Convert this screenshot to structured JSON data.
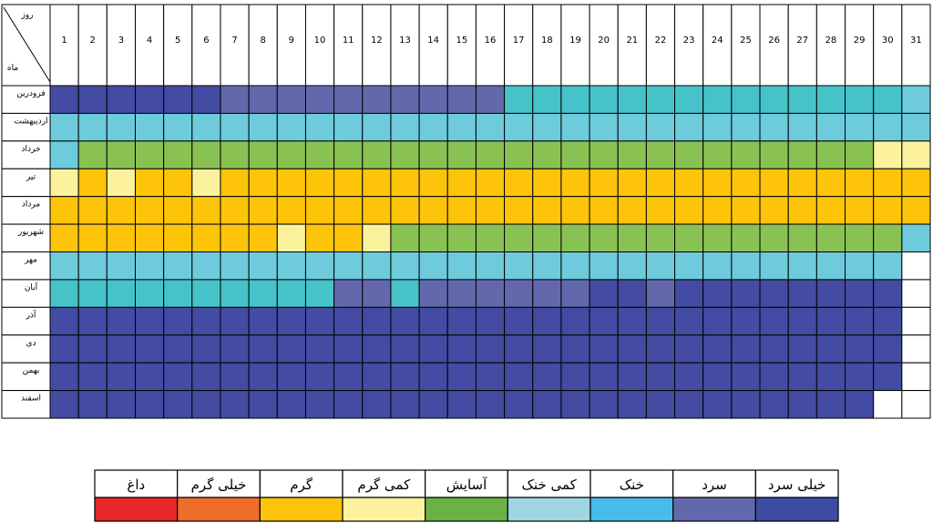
{
  "chart_data": {
    "type": "heatmap",
    "corner": {
      "top_label": "روز",
      "bottom_label": "ماه"
    },
    "days": [
      "1",
      "2",
      "3",
      "4",
      "5",
      "6",
      "7",
      "8",
      "9",
      "10",
      "11",
      "12",
      "13",
      "14",
      "15",
      "16",
      "17",
      "18",
      "19",
      "20",
      "21",
      "22",
      "23",
      "24",
      "25",
      "26",
      "27",
      "28",
      "29",
      "30",
      "31"
    ],
    "months": [
      "فرودرین",
      "اردیبهشت",
      "خرداد",
      "تیر",
      "مرداد",
      "شهریور",
      "مهر",
      "آبان",
      "آذر",
      "دی",
      "بهمن",
      "اسفند"
    ],
    "category_codes": {
      "D": "داغ",
      "VH": "خیلی گرم",
      "H": "گرم",
      "SH": "کمی گرم",
      "C": "آسایش",
      "SC": "کمی خنک",
      "K": "خنک",
      "S": "سرد",
      "VS": "خیلی سرد",
      "N": ""
    },
    "cell_colors": {
      "D": "#e8272a",
      "VH": "#ef6d2a",
      "H": "#fec409",
      "SH": "#fcf29e",
      "C": "#8ac153",
      "SC": "#6dcbdc",
      "TQ": "#45c3c8",
      "S": "#6368ad",
      "VS": "#434ba2",
      "N": "#ffffff"
    },
    "grid": [
      [
        "VS",
        "VS",
        "VS",
        "VS",
        "VS",
        "VS",
        "S",
        "S",
        "S",
        "S",
        "S",
        "S",
        "S",
        "S",
        "S",
        "S",
        "TQ",
        "TQ",
        "TQ",
        "TQ",
        "TQ",
        "TQ",
        "TQ",
        "TQ",
        "TQ",
        "TQ",
        "TQ",
        "TQ",
        "TQ",
        "TQ",
        "SC"
      ],
      [
        "SC",
        "SC",
        "SC",
        "SC",
        "SC",
        "SC",
        "SC",
        "SC",
        "SC",
        "SC",
        "SC",
        "SC",
        "SC",
        "SC",
        "SC",
        "SC",
        "SC",
        "SC",
        "SC",
        "SC",
        "SC",
        "SC",
        "SC",
        "SC",
        "SC",
        "SC",
        "SC",
        "SC",
        "SC",
        "SC",
        "SC"
      ],
      [
        "SC",
        "C",
        "C",
        "C",
        "C",
        "C",
        "C",
        "C",
        "C",
        "C",
        "C",
        "C",
        "C",
        "C",
        "C",
        "C",
        "C",
        "C",
        "C",
        "C",
        "C",
        "C",
        "C",
        "C",
        "C",
        "C",
        "C",
        "C",
        "C",
        "SH",
        "SH"
      ],
      [
        "SH",
        "H",
        "SH",
        "H",
        "H",
        "SH",
        "H",
        "H",
        "H",
        "H",
        "H",
        "H",
        "H",
        "H",
        "H",
        "H",
        "H",
        "H",
        "H",
        "H",
        "H",
        "H",
        "H",
        "H",
        "H",
        "H",
        "H",
        "H",
        "H",
        "H",
        "H"
      ],
      [
        "H",
        "H",
        "H",
        "H",
        "H",
        "H",
        "H",
        "H",
        "H",
        "H",
        "H",
        "H",
        "H",
        "H",
        "H",
        "H",
        "H",
        "H",
        "H",
        "H",
        "H",
        "H",
        "H",
        "H",
        "H",
        "H",
        "H",
        "H",
        "H",
        "H",
        "H"
      ],
      [
        "H",
        "H",
        "H",
        "H",
        "H",
        "H",
        "H",
        "H",
        "SH",
        "H",
        "H",
        "SH",
        "C",
        "C",
        "C",
        "C",
        "C",
        "C",
        "C",
        "C",
        "C",
        "C",
        "C",
        "C",
        "C",
        "C",
        "C",
        "C",
        "C",
        "C",
        "SC"
      ],
      [
        "SC",
        "SC",
        "SC",
        "SC",
        "SC",
        "SC",
        "SC",
        "SC",
        "SC",
        "SC",
        "SC",
        "SC",
        "SC",
        "SC",
        "SC",
        "SC",
        "SC",
        "SC",
        "SC",
        "SC",
        "SC",
        "SC",
        "SC",
        "SC",
        "SC",
        "SC",
        "SC",
        "SC",
        "SC",
        "SC",
        "N"
      ],
      [
        "TQ",
        "TQ",
        "TQ",
        "TQ",
        "TQ",
        "TQ",
        "TQ",
        "TQ",
        "TQ",
        "TQ",
        "S",
        "S",
        "TQ",
        "S",
        "S",
        "S",
        "S",
        "S",
        "S",
        "VS",
        "VS",
        "S",
        "VS",
        "VS",
        "VS",
        "VS",
        "VS",
        "VS",
        "VS",
        "VS",
        "N"
      ],
      [
        "VS",
        "VS",
        "VS",
        "VS",
        "VS",
        "VS",
        "VS",
        "VS",
        "VS",
        "VS",
        "VS",
        "VS",
        "VS",
        "VS",
        "VS",
        "VS",
        "VS",
        "VS",
        "VS",
        "VS",
        "VS",
        "VS",
        "VS",
        "VS",
        "VS",
        "VS",
        "VS",
        "VS",
        "VS",
        "VS",
        "N"
      ],
      [
        "VS",
        "VS",
        "VS",
        "VS",
        "VS",
        "VS",
        "VS",
        "VS",
        "VS",
        "VS",
        "VS",
        "VS",
        "VS",
        "VS",
        "VS",
        "VS",
        "VS",
        "VS",
        "VS",
        "VS",
        "VS",
        "VS",
        "VS",
        "VS",
        "VS",
        "VS",
        "VS",
        "VS",
        "VS",
        "VS",
        "N"
      ],
      [
        "VS",
        "VS",
        "VS",
        "VS",
        "VS",
        "VS",
        "VS",
        "VS",
        "VS",
        "VS",
        "VS",
        "VS",
        "VS",
        "VS",
        "VS",
        "VS",
        "VS",
        "VS",
        "VS",
        "VS",
        "VS",
        "VS",
        "VS",
        "VS",
        "VS",
        "VS",
        "VS",
        "VS",
        "VS",
        "VS",
        "N"
      ],
      [
        "VS",
        "VS",
        "VS",
        "VS",
        "VS",
        "VS",
        "VS",
        "VS",
        "VS",
        "VS",
        "VS",
        "VS",
        "VS",
        "VS",
        "VS",
        "VS",
        "VS",
        "VS",
        "VS",
        "VS",
        "VS",
        "VS",
        "VS",
        "VS",
        "VS",
        "VS",
        "VS",
        "VS",
        "VS",
        "N",
        "N"
      ]
    ],
    "legend": [
      {
        "label": "داغ",
        "color": "#e8272a"
      },
      {
        "label": "خیلی گرم",
        "color": "#ef6d2a"
      },
      {
        "label": "گرم",
        "color": "#fec409"
      },
      {
        "label": "کمی گرم",
        "color": "#fcf29e"
      },
      {
        "label": "آسایش",
        "color": "#6ab246"
      },
      {
        "label": "کمی خنک",
        "color": "#9fd6e3"
      },
      {
        "label": "خنک",
        "color": "#48bce9"
      },
      {
        "label": "سرد",
        "color": "#6368ad"
      },
      {
        "label": "خیلی سرد",
        "color": "#3d4ba0"
      }
    ]
  }
}
